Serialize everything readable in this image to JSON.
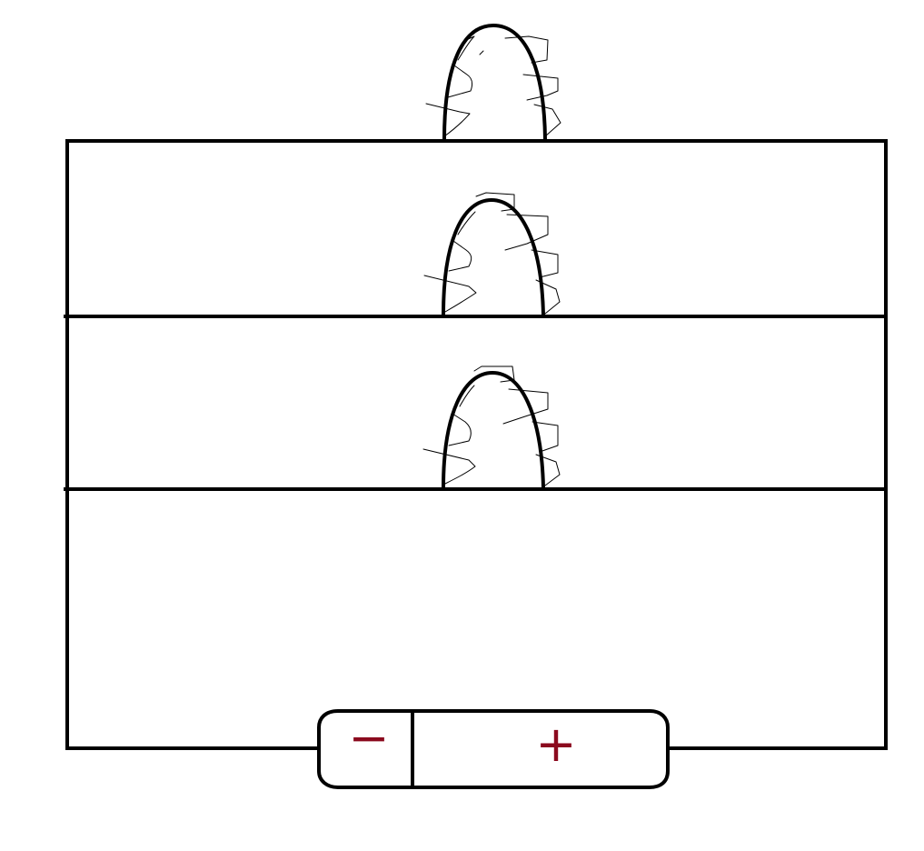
{
  "battery": {
    "negative_symbol": "−",
    "positive_symbol": "+",
    "symbol_color": "#8b0a1e"
  },
  "colors": {
    "wire": "#000000",
    "background": "#ffffff"
  },
  "bulbs": [
    {
      "name": "bulb-top"
    },
    {
      "name": "bulb-middle"
    },
    {
      "name": "bulb-bottom"
    }
  ]
}
